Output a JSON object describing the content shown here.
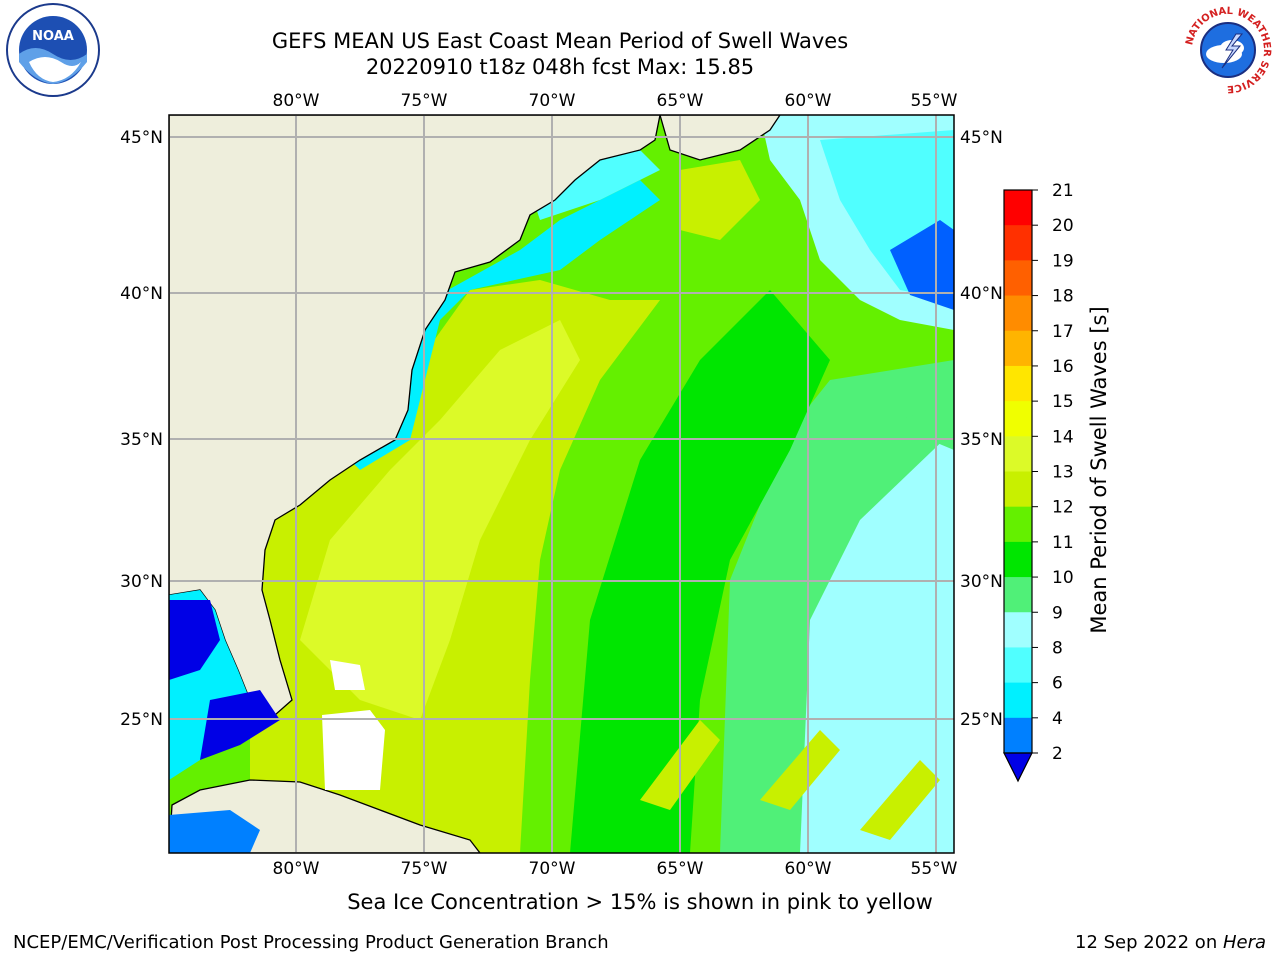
{
  "title": {
    "line1": "GEFS MEAN US East Coast Mean Period of Swell Waves",
    "line2": "20220910 t18z 048h fcst   Max: 15.85"
  },
  "map": {
    "lon_labels": [
      "80°W",
      "75°W",
      "70°W",
      "65°W",
      "60°W",
      "55°W"
    ],
    "lat_labels": [
      "45°N",
      "40°N",
      "35°N",
      "30°N",
      "25°N"
    ],
    "land_color": "#eeeedc",
    "grid_color": "#b0b0b0"
  },
  "colorbar": {
    "label": "Mean Period of Swell Waves [s]",
    "ticks": [
      "21",
      "20",
      "19",
      "18",
      "17",
      "16",
      "15",
      "14",
      "13",
      "12",
      "11",
      "10",
      "9",
      "8",
      "6",
      "4",
      "2"
    ],
    "colors": [
      "#ff0000",
      "#ff3000",
      "#ff6000",
      "#ff8c00",
      "#ffb400",
      "#ffe600",
      "#f0ff00",
      "#dcfa28",
      "#c8f000",
      "#64f000",
      "#00e600",
      "#50f078",
      "#a0ffff",
      "#50ffff",
      "#00f0ff",
      "#0080ff",
      "#0000e6"
    ]
  },
  "notes": {
    "sea_ice": "Sea Ice Concentration > 15% is shown in pink to yellow",
    "footer_left": "NCEP/EMC/Verification Post Processing Product Generation Branch",
    "footer_date": "12 Sep 2022 on ",
    "footer_host": "Hera"
  },
  "logos": {
    "left": "noaa-logo",
    "right": "national-weather-service-logo",
    "right_text": "NATIONAL WEATHER SERVICE"
  }
}
